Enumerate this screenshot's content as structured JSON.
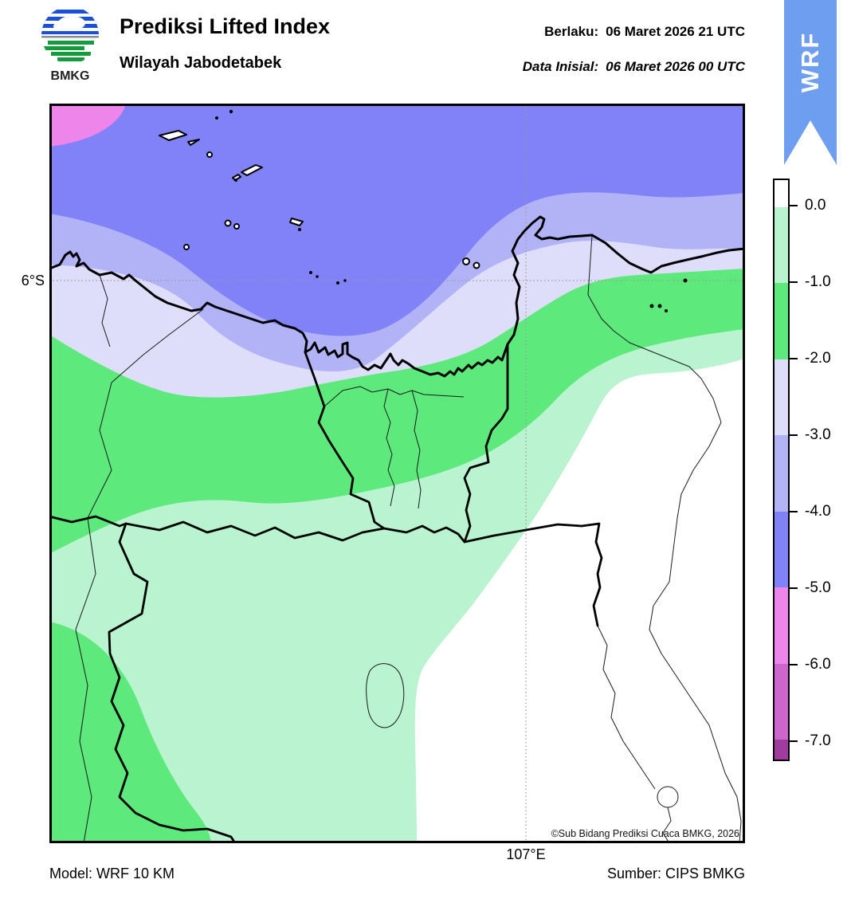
{
  "header": {
    "logo_text": "BMKG",
    "title": "Prediksi Lifted Index",
    "subtitle": "Wilayah Jabodetabek",
    "valid_label": "Berlaku:",
    "valid_value": "06 Maret 2026 21 UTC",
    "init_label": "Data Inisial:",
    "init_value": "06 Maret 2026 00 UTC",
    "ribbon_text": "WRF",
    "ribbon_color": "#6e9ef0"
  },
  "map": {
    "lat_gridline_label": "6°S",
    "lon_gridline_label": "107°E",
    "copyright": "©Sub Bidang Prediksi Cuaca BMKG, 2026"
  },
  "colorbar": {
    "tick_labels": [
      "0.0",
      "-1.0",
      "-2.0",
      "-3.0",
      "-4.0",
      "-5.0",
      "-6.0",
      "-7.0"
    ],
    "segment_colors": [
      "#ffffff",
      "#b9f3cf",
      "#5ee97d",
      "#dedefa",
      "#b2b2f7",
      "#8181f8",
      "#ee85ea",
      "#cc66cc",
      "#a03ca0"
    ]
  },
  "footer": {
    "model": "Model: WRF 10 KM",
    "source": "Sumber: CIPS BMKG"
  }
}
